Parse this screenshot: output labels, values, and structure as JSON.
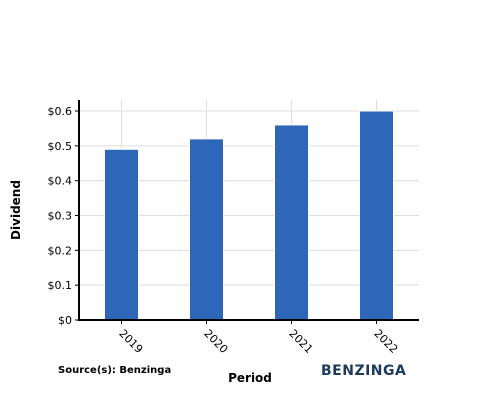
{
  "chart_data": {
    "type": "bar",
    "categories": [
      "2019",
      "2020",
      "2021",
      "2022"
    ],
    "values": [
      0.49,
      0.52,
      0.56,
      0.6
    ],
    "title": "",
    "xlabel": "Period",
    "ylabel": "Dividend",
    "ylim": [
      0,
      0.63
    ],
    "yticks": [
      0,
      0.1,
      0.2,
      0.3,
      0.4,
      0.5,
      0.6
    ],
    "ytick_labels": [
      "$0",
      "$0.1",
      "$0.2",
      "$0.3",
      "$0.4",
      "$0.5",
      "$0.6"
    ],
    "grid": true,
    "legend": "none",
    "bar_color": "#2e67b8"
  },
  "footer": {
    "source": "Source(s): Benzinga",
    "brand": "BENZINGA",
    "brand_color": "#1c3b5a"
  }
}
